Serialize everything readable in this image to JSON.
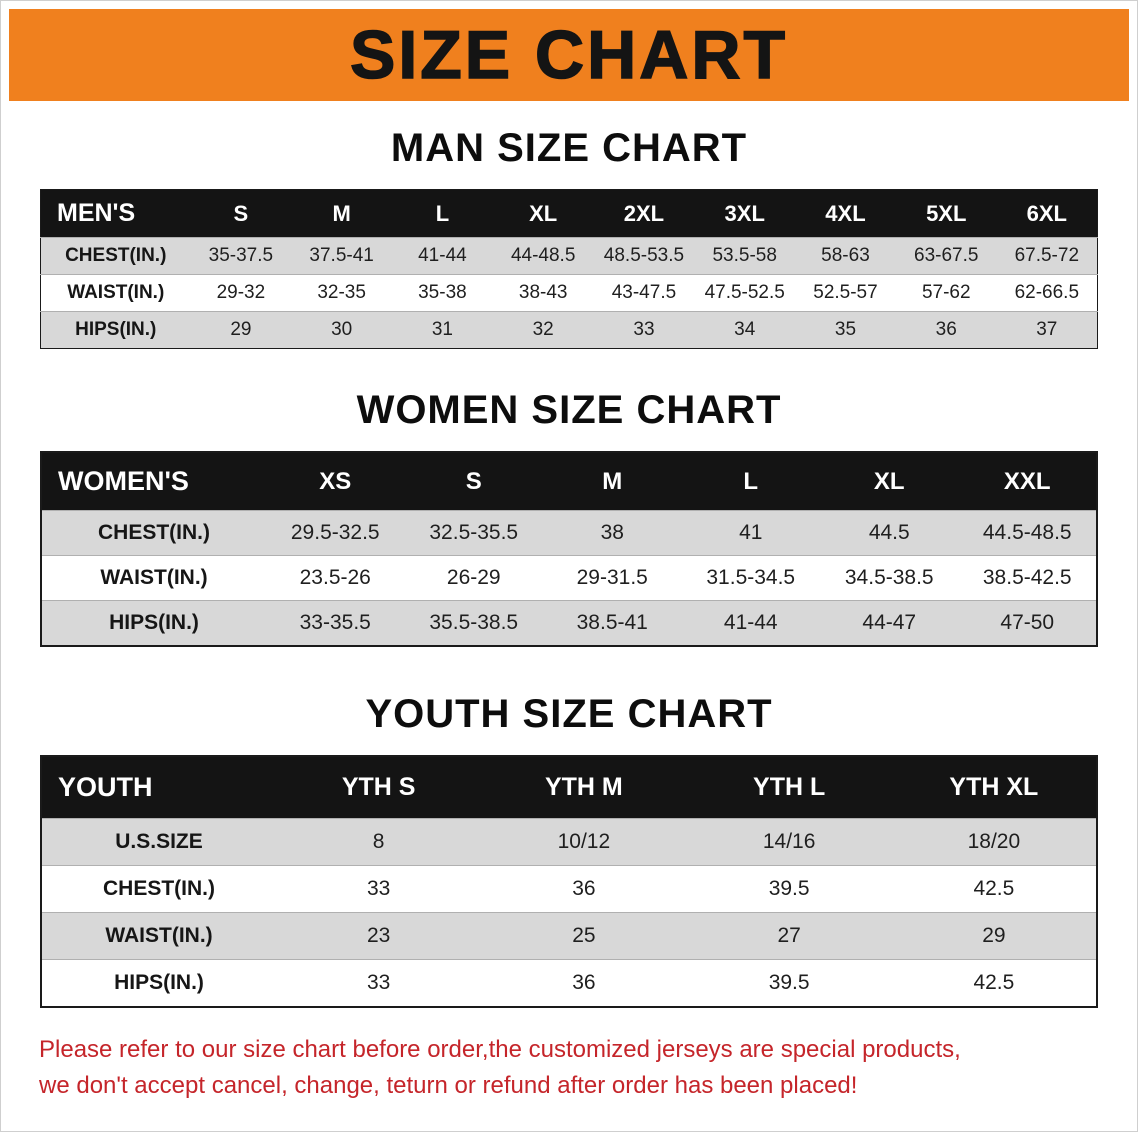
{
  "banner": {
    "title": "SIZE CHART"
  },
  "sections": [
    {
      "id": "men",
      "heading": "MAN SIZE CHART",
      "table": {
        "corner": "MEN'S",
        "columns": [
          "S",
          "M",
          "L",
          "XL",
          "2XL",
          "3XL",
          "4XL",
          "5XL",
          "6XL"
        ],
        "rows": [
          {
            "label": "CHEST(IN.)",
            "values": [
              "35-37.5",
              "37.5-41",
              "41-44",
              "44-48.5",
              "48.5-53.5",
              "53.5-58",
              "58-63",
              "63-67.5",
              "67.5-72"
            ]
          },
          {
            "label": "WAIST(IN.)",
            "values": [
              "29-32",
              "32-35",
              "35-38",
              "38-43",
              "43-47.5",
              "47.5-52.5",
              "52.5-57",
              "57-62",
              "62-66.5"
            ]
          },
          {
            "label": "HIPS(IN.)",
            "values": [
              "29",
              "30",
              "31",
              "32",
              "33",
              "34",
              "35",
              "36",
              "37"
            ]
          }
        ]
      }
    },
    {
      "id": "women",
      "heading": "WOMEN SIZE CHART",
      "table": {
        "corner": "WOMEN'S",
        "columns": [
          "XS",
          "S",
          "M",
          "L",
          "XL",
          "XXL"
        ],
        "rows": [
          {
            "label": "CHEST(IN.)",
            "values": [
              "29.5-32.5",
              "32.5-35.5",
              "38",
              "41",
              "44.5",
              "44.5-48.5"
            ]
          },
          {
            "label": "WAIST(IN.)",
            "values": [
              "23.5-26",
              "26-29",
              "29-31.5",
              "31.5-34.5",
              "34.5-38.5",
              "38.5-42.5"
            ]
          },
          {
            "label": "HIPS(IN.)",
            "values": [
              "33-35.5",
              "35.5-38.5",
              "38.5-41",
              "41-44",
              "44-47",
              "47-50"
            ]
          }
        ]
      }
    },
    {
      "id": "youth",
      "heading": "YOUTH SIZE CHART",
      "table": {
        "corner": "YOUTH",
        "columns": [
          "YTH S",
          "YTH M",
          "YTH L",
          "YTH XL"
        ],
        "rows": [
          {
            "label": "U.S.SIZE",
            "values": [
              "8",
              "10/12",
              "14/16",
              "18/20"
            ]
          },
          {
            "label": "CHEST(IN.)",
            "values": [
              "33",
              "36",
              "39.5",
              "42.5"
            ]
          },
          {
            "label": "WAIST(IN.)",
            "values": [
              "23",
              "25",
              "27",
              "29"
            ]
          },
          {
            "label": "HIPS(IN.)",
            "values": [
              "33",
              "36",
              "39.5",
              "42.5"
            ]
          }
        ]
      }
    }
  ],
  "disclaimer": {
    "lines": [
      "Please refer to our size chart before order,the customized jerseys are special products,",
      "we don't accept cancel, change, teturn or refund after order has been placed!"
    ]
  },
  "colors": {
    "banner_bg": "#F0801E",
    "table_header_bg": "#141414",
    "row_alt_bg": "#d8d8d8",
    "disclaimer_text": "#c5252a"
  }
}
